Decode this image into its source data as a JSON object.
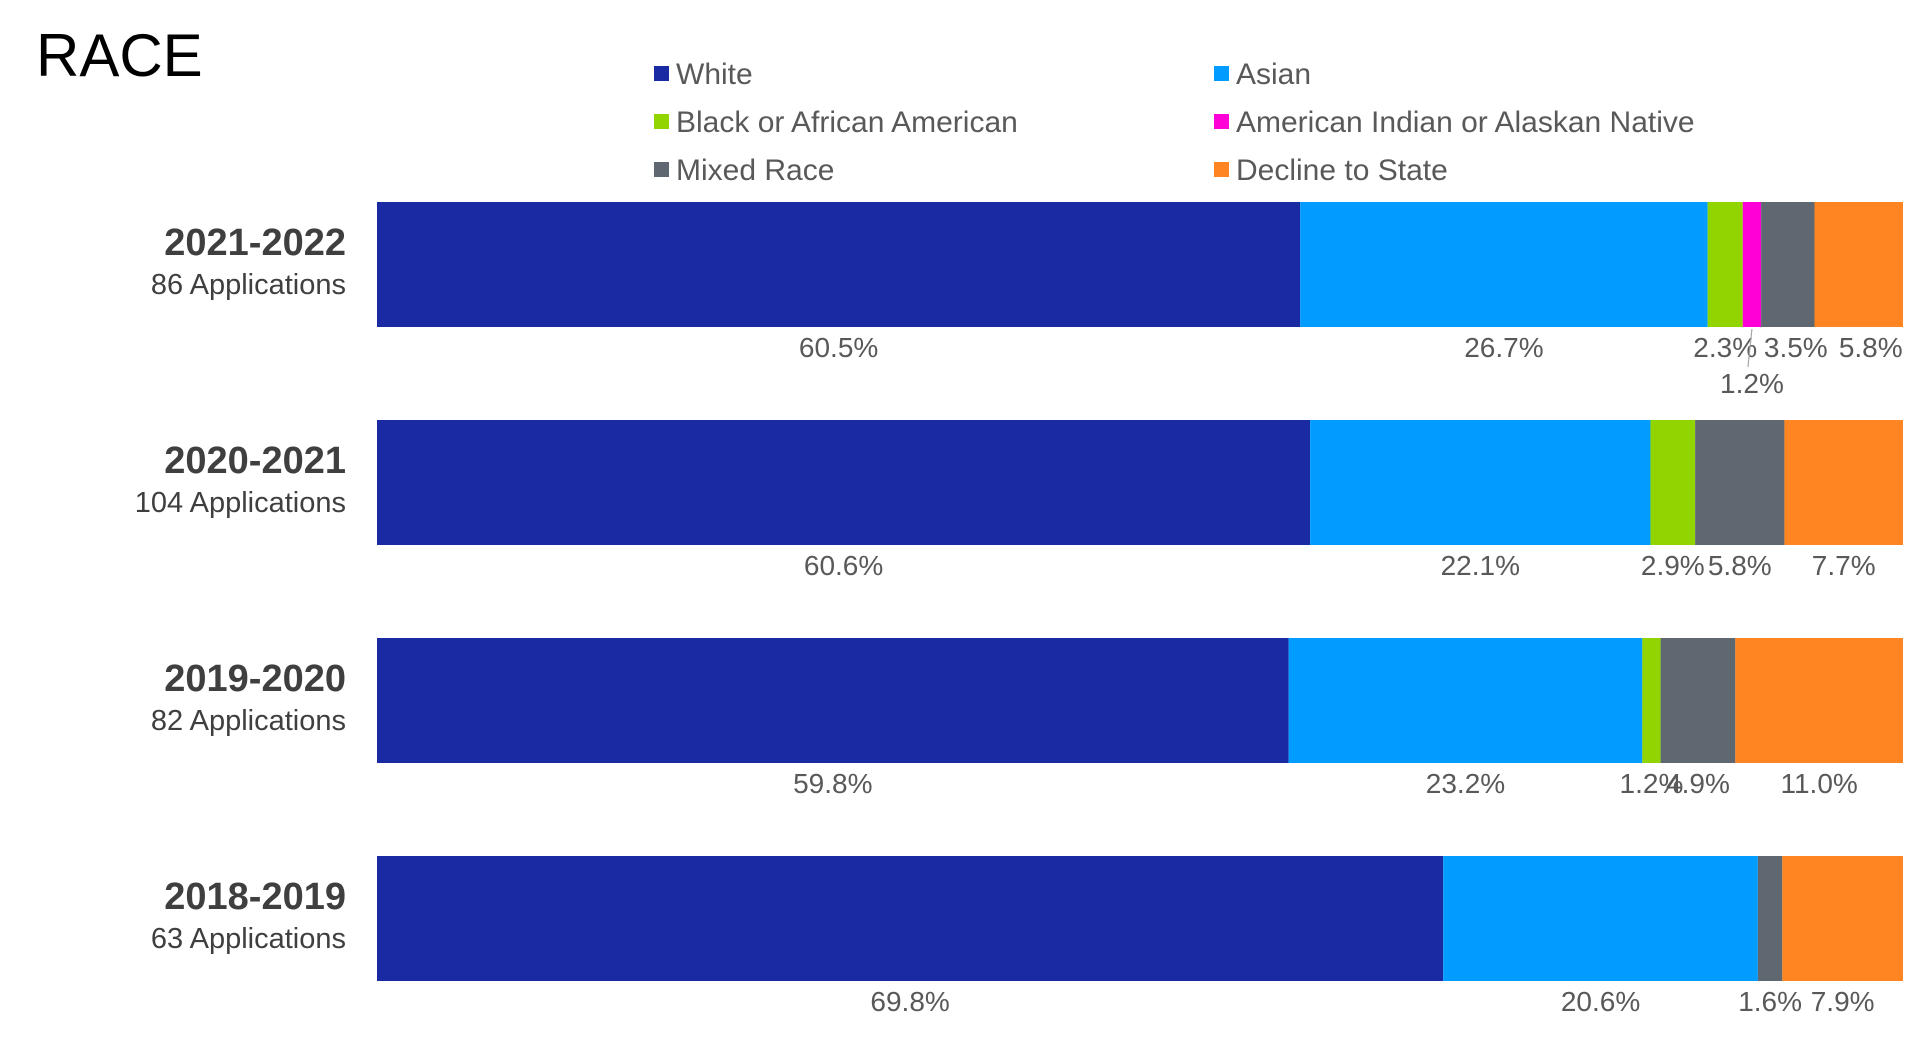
{
  "chart_data": {
    "type": "bar",
    "orientation": "horizontal",
    "stacked": true,
    "title": "RACE",
    "legend_position": "top",
    "grid": false,
    "xlim": [
      0,
      100
    ],
    "categories": [
      "2021-2022",
      "2020-2021",
      "2019-2020",
      "2018-2019"
    ],
    "category_subtitles": [
      "86 Applications",
      "104 Applications",
      "82 Applications",
      "63 Applications"
    ],
    "series": [
      {
        "name": "White",
        "color": "#1a2aa3",
        "values": [
          60.5,
          60.6,
          59.8,
          69.8
        ],
        "labels": [
          "60.5%",
          "60.6%",
          "59.8%",
          "69.8%"
        ]
      },
      {
        "name": "Asian",
        "color": "#009cff",
        "values": [
          26.7,
          22.1,
          23.2,
          20.6
        ],
        "labels": [
          "26.7%",
          "22.1%",
          "23.2%",
          "20.6%"
        ]
      },
      {
        "name": "Black or African American",
        "color": "#92d400",
        "values": [
          2.3,
          2.9,
          1.2,
          0
        ],
        "labels": [
          "2.3%",
          "2.9%",
          "1.2%",
          ""
        ]
      },
      {
        "name": "American Indian or Alaskan Native",
        "color": "#ff00d7",
        "values": [
          1.2,
          0,
          0,
          0
        ],
        "labels": [
          "1.2%",
          "",
          "",
          ""
        ]
      },
      {
        "name": "Mixed Race",
        "color": "#5f6770",
        "values": [
          3.5,
          5.8,
          4.9,
          1.6
        ],
        "labels": [
          "3.5%",
          "5.8%",
          "4.9%",
          "1.6%"
        ]
      },
      {
        "name": "Decline to State",
        "color": "#ff8522",
        "values": [
          5.8,
          7.7,
          11.0,
          7.9
        ],
        "labels": [
          "5.8%",
          "7.7%",
          "11.0%",
          "7.9%"
        ]
      }
    ]
  }
}
